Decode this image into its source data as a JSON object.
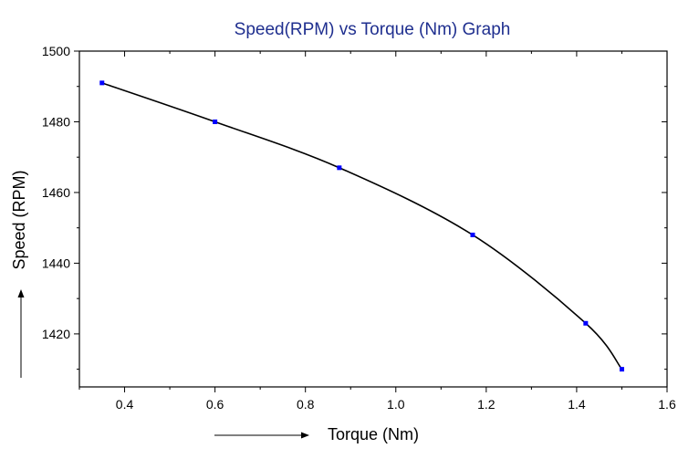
{
  "chart_data": {
    "type": "line",
    "title": "Speed(RPM) vs Torque (Nm) Graph",
    "xlabel": "Torque (Nm)",
    "ylabel": "Speed (RPM)",
    "xlim": [
      0.3,
      1.6
    ],
    "ylim": [
      1405,
      1500
    ],
    "x_ticks": [
      0.4,
      0.6,
      0.8,
      1.0,
      1.2,
      1.4,
      1.6
    ],
    "x_tick_labels": [
      "0.4",
      "0.6",
      "0.8",
      "1.0",
      "1.2",
      "1.4",
      "1.6"
    ],
    "y_ticks": [
      1420,
      1440,
      1460,
      1480,
      1500
    ],
    "y_tick_labels": [
      "1420",
      "1440",
      "1460",
      "1480",
      "1500"
    ],
    "grid": false,
    "legend": "none",
    "line_color": "#000000",
    "marker_color": "#0000ff",
    "title_color": "#1f2f8f",
    "x": [
      0.35,
      0.6,
      0.875,
      1.17,
      1.42,
      1.5
    ],
    "y": [
      1491,
      1480,
      1467,
      1448,
      1423,
      1410
    ]
  }
}
